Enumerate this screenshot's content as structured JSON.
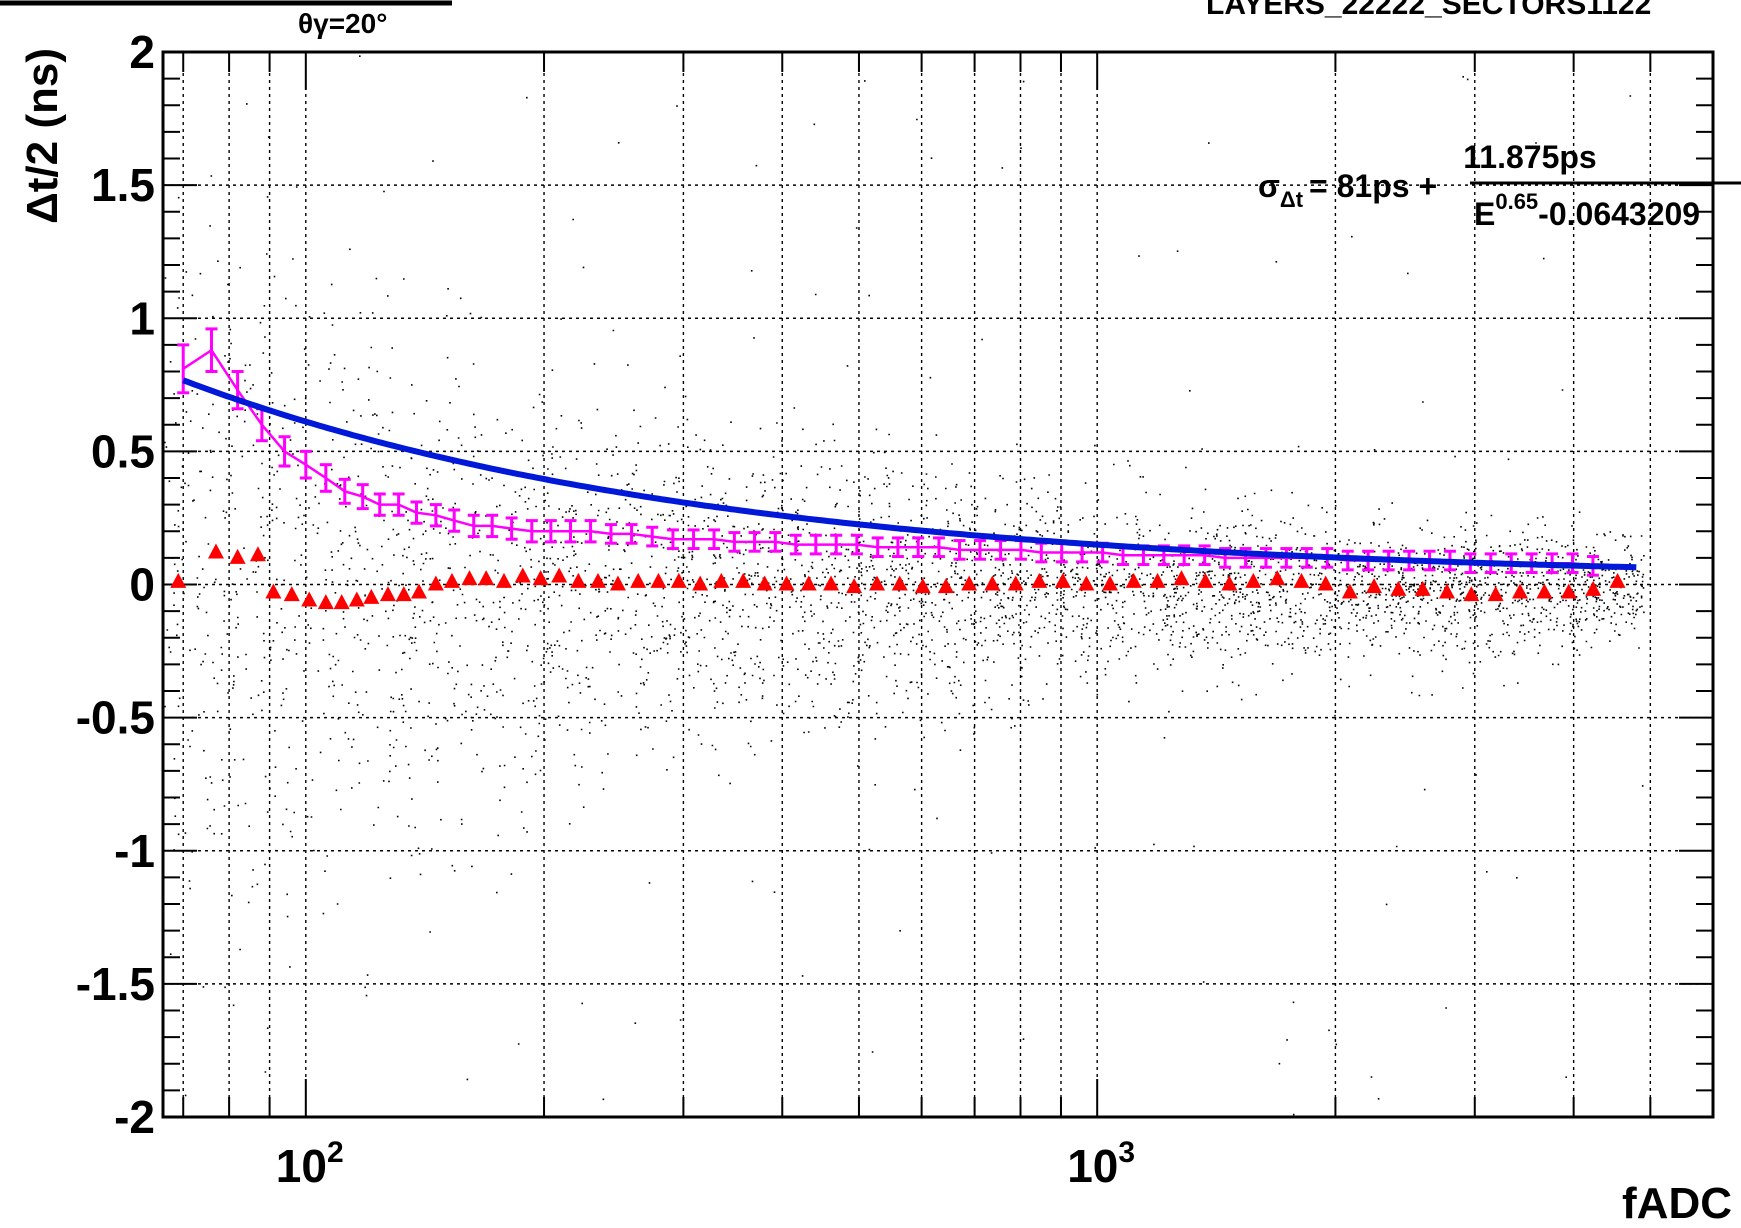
{
  "chart_data": {
    "type": "scatter",
    "title": "LAYERS_22222_SECTORS1122",
    "subtitle": "θγ=20°",
    "xlabel": "fADC",
    "ylabel": "Δt/2 (ns)",
    "x_scale": "log",
    "xlim": [
      66,
      6000
    ],
    "ylim": [
      -2,
      2
    ],
    "grid": true,
    "x_tick_labels": [
      {
        "value": 100,
        "base": "10",
        "exp": "2"
      },
      {
        "value": 1000,
        "base": "10",
        "exp": "3"
      }
    ],
    "y_ticks": [
      "2",
      "1.5",
      "1",
      "0.5",
      "0",
      "-0.5",
      "-1",
      "-1.5",
      "-2"
    ],
    "annotation": {
      "lhs": "σ",
      "lhs_sub": "Δt",
      "mid": "= 81ps +",
      "numerator": "11.875ps",
      "denominator_base": "E",
      "denominator_exp": "0.65",
      "denominator_tail": "-0.0643209"
    },
    "colors": {
      "fit": "#0018d8",
      "profile": "#ff00ff",
      "mean": "#ff0000",
      "scatter": "#000000",
      "grid": "#000000"
    },
    "series": [
      {
        "kind": "fit-curve",
        "params": {
          "a": 0.081,
          "b": 11.875,
          "p": 0.65,
          "c": -0.0643209
        },
        "x_range": [
          70,
          4800
        ]
      },
      {
        "kind": "profile-errorbars",
        "x": [
          70,
          76,
          82,
          88,
          94,
          100,
          106,
          112,
          118,
          124,
          131,
          138,
          146,
          154,
          163,
          172,
          182,
          193,
          204,
          216,
          229,
          243,
          258,
          274,
          291,
          309,
          328,
          348,
          369,
          392,
          416,
          441,
          468,
          497,
          528,
          560,
          594,
          631,
          670,
          711,
          755,
          801,
          850,
          902,
          957,
          1016,
          1078,
          1144,
          1214,
          1288,
          1367,
          1451,
          1540,
          1634,
          1734,
          1840,
          1953,
          2073,
          2200,
          2335,
          2478,
          2630,
          2791,
          2962,
          3143,
          3336,
          3540,
          3757,
          3987,
          4231
        ],
        "y": [
          0.81,
          0.88,
          0.73,
          0.6,
          0.5,
          0.45,
          0.4,
          0.35,
          0.33,
          0.3,
          0.3,
          0.27,
          0.26,
          0.24,
          0.22,
          0.22,
          0.21,
          0.2,
          0.2,
          0.2,
          0.2,
          0.19,
          0.19,
          0.18,
          0.17,
          0.17,
          0.17,
          0.16,
          0.16,
          0.16,
          0.15,
          0.15,
          0.15,
          0.15,
          0.14,
          0.14,
          0.14,
          0.14,
          0.13,
          0.13,
          0.13,
          0.13,
          0.12,
          0.12,
          0.12,
          0.12,
          0.11,
          0.11,
          0.11,
          0.11,
          0.11,
          0.1,
          0.1,
          0.1,
          0.1,
          0.1,
          0.1,
          0.09,
          0.09,
          0.09,
          0.09,
          0.09,
          0.09,
          0.08,
          0.08,
          0.08,
          0.08,
          0.08,
          0.08,
          0.07
        ],
        "err": [
          0.09,
          0.08,
          0.07,
          0.06,
          0.055,
          0.05,
          0.05,
          0.045,
          0.045,
          0.04,
          0.04,
          0.04,
          0.04,
          0.04,
          0.04,
          0.04,
          0.04,
          0.04,
          0.04,
          0.04,
          0.04,
          0.035,
          0.035,
          0.035,
          0.035,
          0.035,
          0.035,
          0.035,
          0.035,
          0.035,
          0.035,
          0.035,
          0.035,
          0.035,
          0.035,
          0.035,
          0.035,
          0.035,
          0.035,
          0.035,
          0.035,
          0.035,
          0.035,
          0.035,
          0.035,
          0.035,
          0.035,
          0.035,
          0.035,
          0.035,
          0.035,
          0.035,
          0.035,
          0.035,
          0.035,
          0.035,
          0.035,
          0.035,
          0.035,
          0.035,
          0.035,
          0.035,
          0.035,
          0.035,
          0.035,
          0.035,
          0.035,
          0.035,
          0.035,
          0.035
        ]
      },
      {
        "kind": "mean-triangles",
        "x": [
          69,
          77,
          82,
          87,
          91,
          96,
          101,
          106,
          111,
          116,
          121,
          127,
          133,
          139,
          146,
          153,
          161,
          169,
          178,
          188,
          198,
          209,
          221,
          234,
          248,
          263,
          279,
          296,
          315,
          335,
          357,
          380,
          405,
          432,
          461,
          493,
          527,
          563,
          602,
          644,
          689,
          737,
          789,
          845,
          905,
          969,
          1038,
          1112,
          1192,
          1278,
          1370,
          1469,
          1575,
          1689,
          1812,
          1944,
          2086,
          2238,
          2402,
          2578,
          2767,
          2970,
          3188,
          3422,
          3674,
          3944,
          4234,
          4545
        ],
        "y": [
          0.01,
          0.12,
          0.1,
          0.11,
          -0.03,
          -0.04,
          -0.06,
          -0.07,
          -0.07,
          -0.06,
          -0.05,
          -0.04,
          -0.04,
          -0.03,
          0.0,
          0.01,
          0.02,
          0.02,
          0.01,
          0.03,
          0.02,
          0.03,
          0.01,
          0.01,
          0.0,
          0.01,
          0.01,
          0.01,
          0.0,
          0.01,
          0.01,
          0.0,
          0.0,
          0.0,
          0.0,
          -0.01,
          0.0,
          0.0,
          -0.01,
          -0.01,
          0.0,
          0.0,
          0.0,
          0.01,
          0.01,
          0.0,
          0.0,
          0.01,
          0.01,
          0.02,
          0.01,
          0.0,
          0.01,
          0.02,
          0.01,
          0.0,
          -0.03,
          -0.01,
          -0.02,
          -0.02,
          -0.03,
          -0.04,
          -0.04,
          -0.03,
          -0.03,
          -0.03,
          -0.02,
          0.01
        ]
      },
      {
        "kind": "raw-scatter",
        "approx_points": 9000
      }
    ]
  }
}
